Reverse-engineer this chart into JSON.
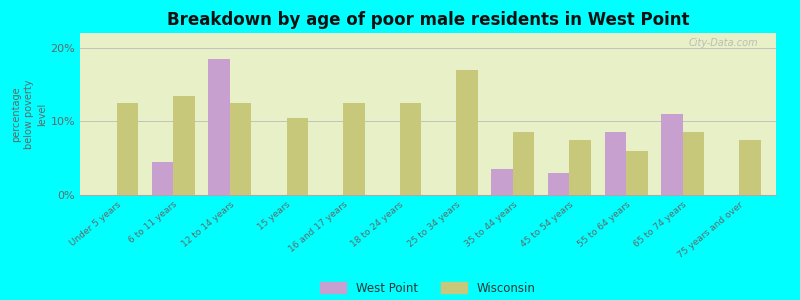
{
  "title": "Breakdown by age of poor male residents in West Point",
  "ylabel": "percentage\nbelow poverty\nlevel",
  "categories": [
    "Under 5 years",
    "6 to 11 years",
    "12 to 14 years",
    "15 years",
    "16 and 17 years",
    "18 to 24 years",
    "25 to 34 years",
    "35 to 44 years",
    "45 to 54 years",
    "55 to 64 years",
    "65 to 74 years",
    "75 years and over"
  ],
  "west_point": [
    0,
    4.5,
    18.5,
    0,
    0,
    0,
    0,
    3.5,
    3.0,
    8.5,
    11.0,
    0
  ],
  "wisconsin": [
    12.5,
    13.5,
    12.5,
    10.5,
    12.5,
    12.5,
    17.0,
    8.5,
    7.5,
    6.0,
    8.5,
    7.5
  ],
  "west_point_color": "#c8a0d0",
  "wisconsin_color": "#c8c87a",
  "background_outer": "#00ffff",
  "background_plot_top": "#f0f5e0",
  "background_plot_bottom": "#e8f0c8",
  "ylim": [
    0,
    22
  ],
  "yticks": [
    0,
    10,
    20
  ],
  "ytick_labels": [
    "0%",
    "10%",
    "20%"
  ],
  "watermark": "City-Data.com",
  "bar_width": 0.38,
  "title_fontsize": 12,
  "ylabel_fontsize": 7,
  "tick_fontsize": 6.5
}
